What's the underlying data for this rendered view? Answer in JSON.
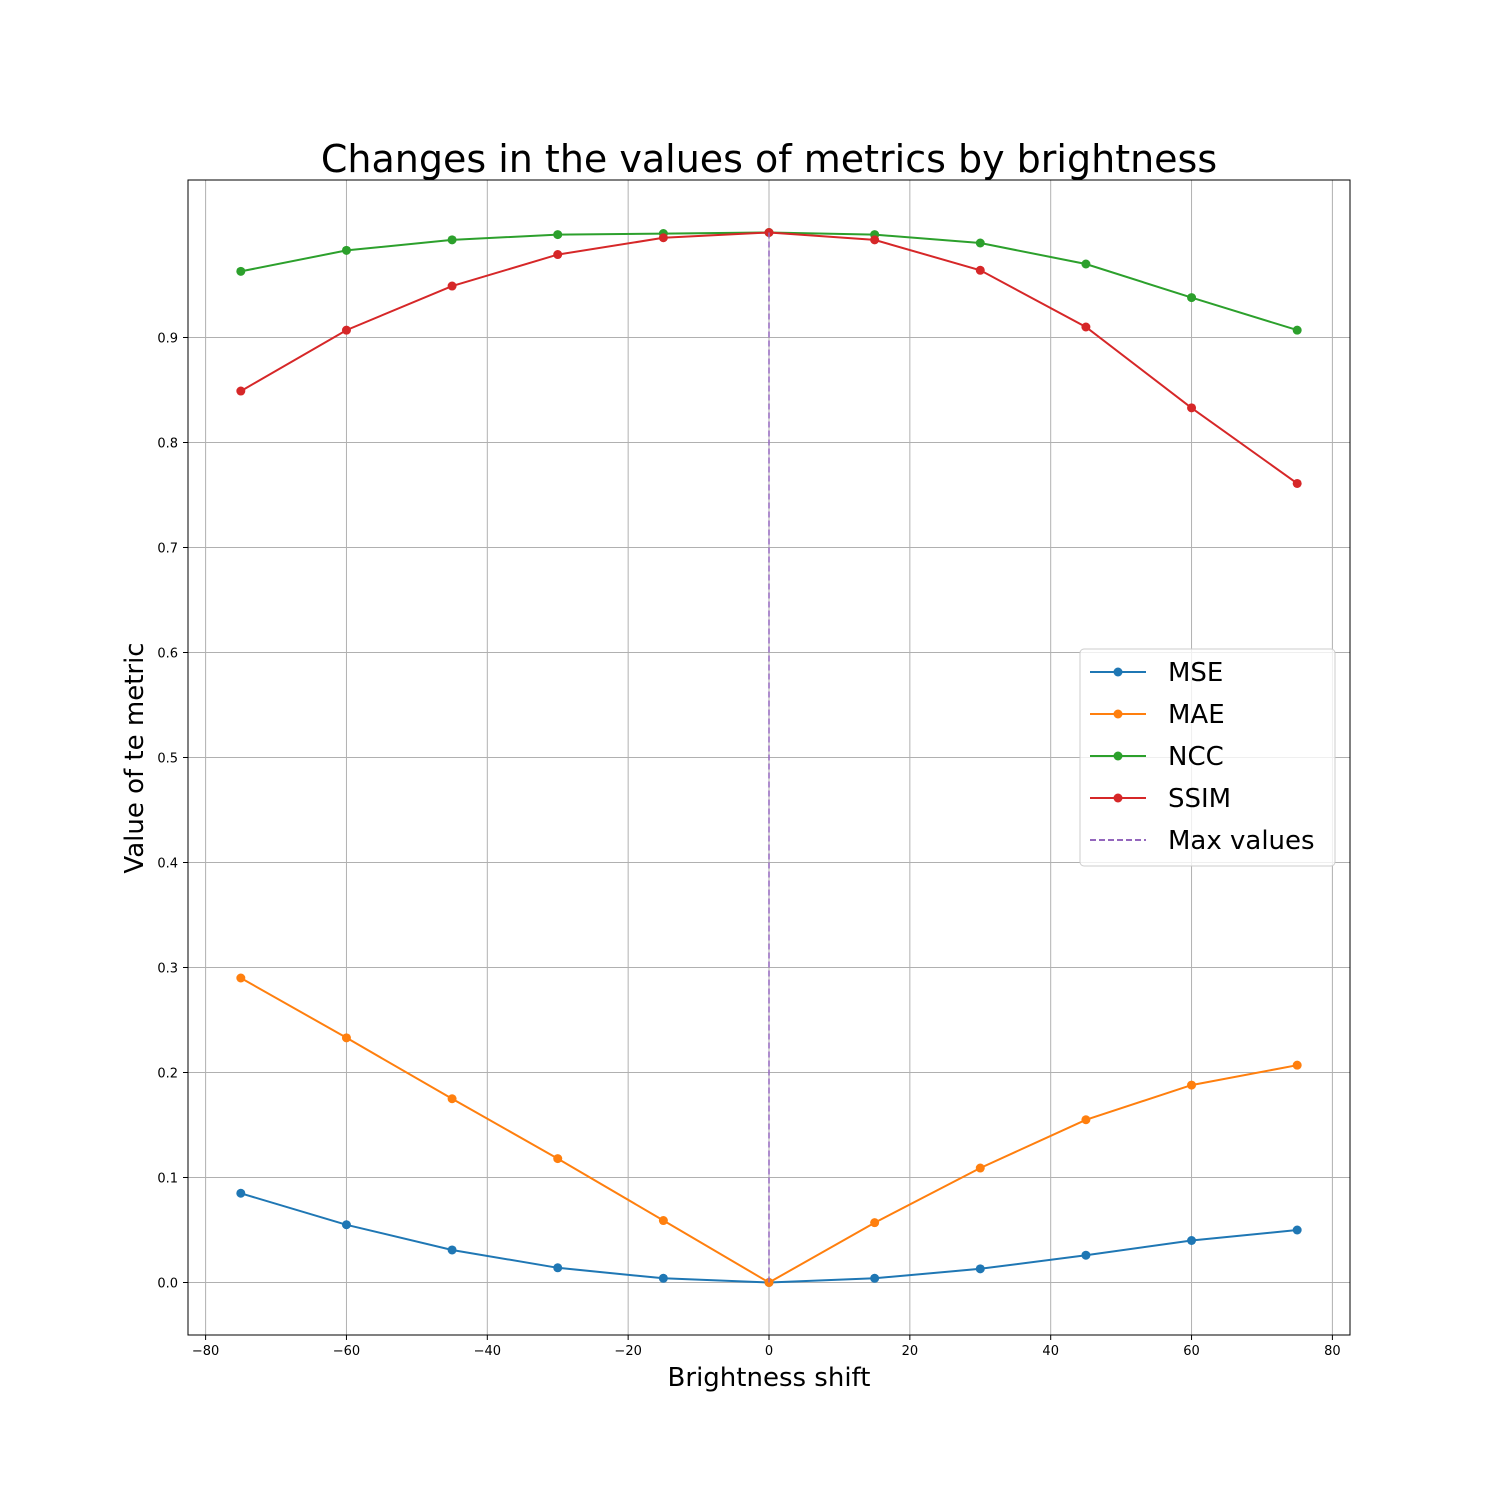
{
  "chart_data": {
    "type": "line",
    "title": "Changes in the values of metrics by brightness",
    "xlabel": "Brightness shift",
    "ylabel": "Value of te metric",
    "xlim": [
      -82.5,
      82.5
    ],
    "ylim": [
      -0.05,
      1.05
    ],
    "xticks": [
      -80,
      -60,
      -40,
      -20,
      0,
      20,
      40,
      60,
      80
    ],
    "xtick_labels": [
      "−80",
      "−60",
      "−40",
      "−20",
      "0",
      "20",
      "40",
      "60",
      "80"
    ],
    "yticks": [
      0.0,
      0.1,
      0.2,
      0.3,
      0.4,
      0.5,
      0.6,
      0.7,
      0.8,
      0.9
    ],
    "ytick_labels": [
      "0.0",
      "0.1",
      "0.2",
      "0.3",
      "0.4",
      "0.5",
      "0.6",
      "0.7",
      "0.8",
      "0.9"
    ],
    "grid": true,
    "legend_position": "center-right",
    "x": [
      -75,
      -60,
      -45,
      -30,
      -15,
      0,
      15,
      30,
      45,
      60,
      75
    ],
    "series": [
      {
        "name": "MSE",
        "color": "#1f77b4",
        "values": [
          0.085,
          0.055,
          0.031,
          0.014,
          0.004,
          0.0,
          0.004,
          0.013,
          0.026,
          0.04,
          0.05
        ]
      },
      {
        "name": "MAE",
        "color": "#ff7f0e",
        "values": [
          0.29,
          0.233,
          0.175,
          0.118,
          0.059,
          0.0,
          0.057,
          0.109,
          0.155,
          0.188,
          0.207
        ]
      },
      {
        "name": "NCC",
        "color": "#2ca02c",
        "values": [
          0.963,
          0.983,
          0.993,
          0.998,
          0.999,
          1.0,
          0.998,
          0.99,
          0.97,
          0.938,
          0.907
        ]
      },
      {
        "name": "SSIM",
        "color": "#d62728",
        "values": [
          0.849,
          0.907,
          0.949,
          0.979,
          0.995,
          1.0,
          0.993,
          0.964,
          0.91,
          0.833,
          0.761
        ]
      }
    ],
    "max_line": {
      "name": "Max values",
      "color": "#9467bd",
      "x": 0,
      "y_range": [
        0,
        1.0
      ]
    }
  }
}
